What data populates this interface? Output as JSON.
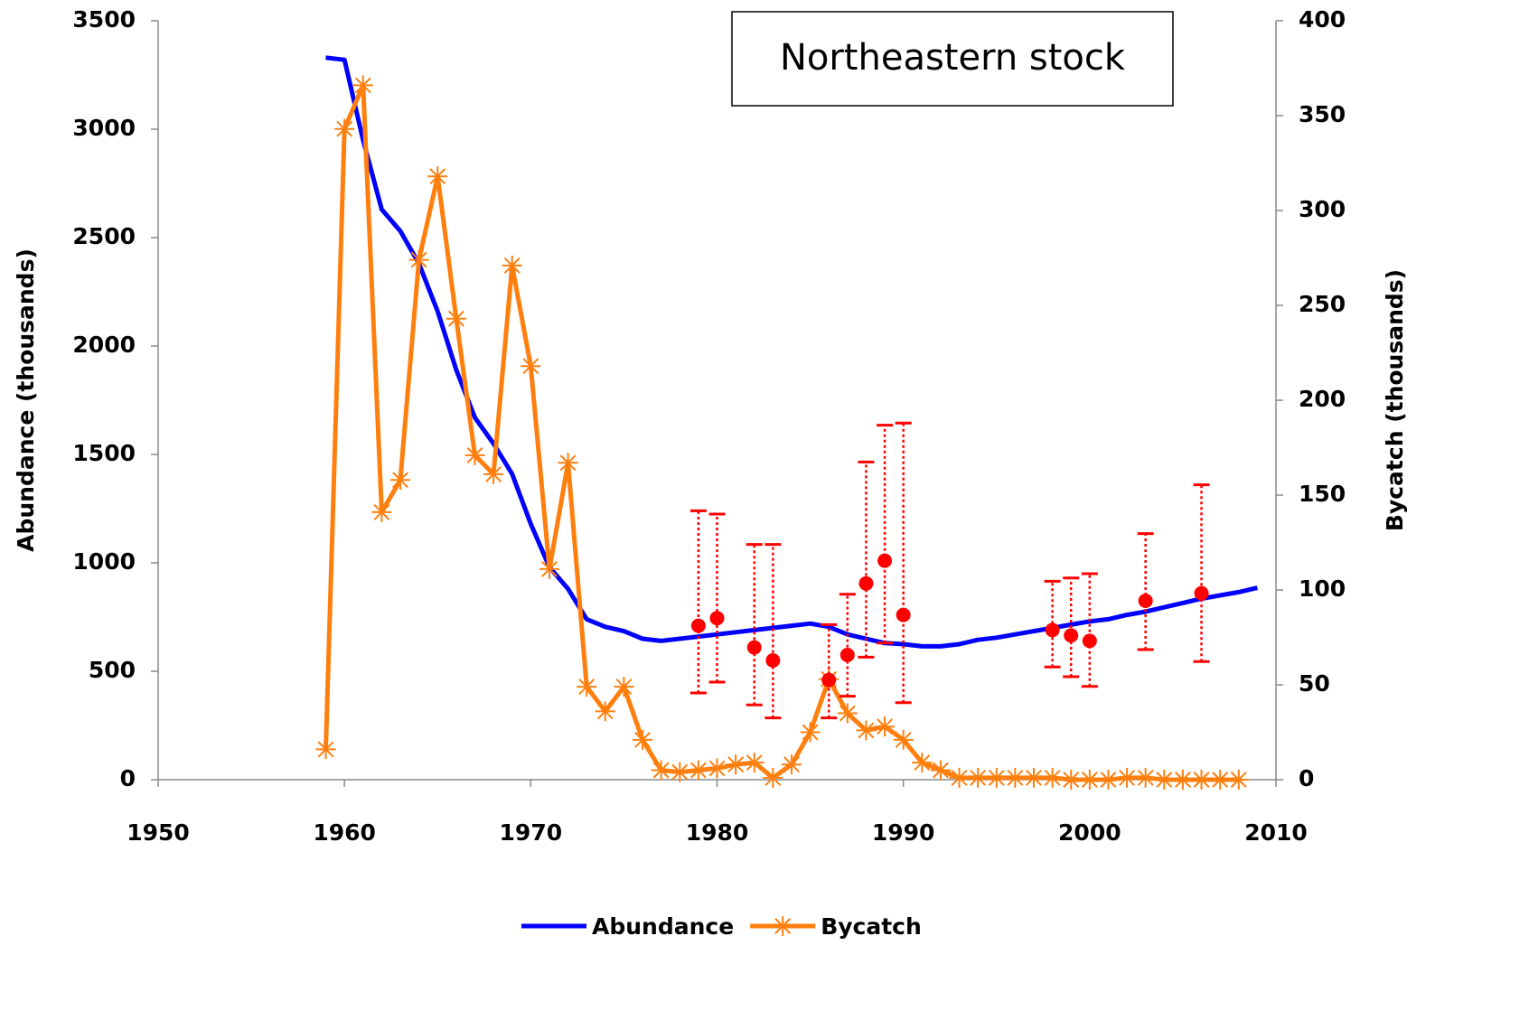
{
  "chart_data": {
    "type": "line",
    "annotation": "Northeastern stock",
    "y_label": "Abundance (thousands)",
    "y2_label": "Bycatch (thousands)",
    "xlim": [
      1950,
      2010
    ],
    "xticks": [
      1950,
      1960,
      1970,
      1980,
      1990,
      2000,
      2010
    ],
    "ylim": [
      0,
      3500
    ],
    "yticks": [
      0,
      500,
      1000,
      1500,
      2000,
      2500,
      3000,
      3500
    ],
    "y2lim": [
      0,
      400
    ],
    "y2ticks": [
      0,
      50,
      100,
      150,
      200,
      250,
      300,
      350,
      400
    ],
    "series": [
      {
        "name": "Abundance",
        "color": "#0000ff",
        "x": [
          1959,
          1960,
          1961,
          1962,
          1963,
          1964,
          1965,
          1966,
          1967,
          1968,
          1969,
          1970,
          1971,
          1972,
          1973,
          1974,
          1975,
          1976,
          1977,
          1978,
          1979,
          1980,
          1981,
          1982,
          1983,
          1984,
          1985,
          1986,
          1987,
          1988,
          1989,
          1990,
          1991,
          1992,
          1993,
          1994,
          1995,
          1996,
          1997,
          1998,
          1999,
          2000,
          2001,
          2002,
          2003,
          2004,
          2005,
          2006,
          2007,
          2008,
          2009
        ],
        "values": [
          3330,
          3320,
          2950,
          2630,
          2530,
          2380,
          2160,
          1890,
          1670,
          1550,
          1410,
          1180,
          980,
          880,
          740,
          705,
          685,
          650,
          640,
          650,
          660,
          670,
          680,
          690,
          700,
          710,
          720,
          705,
          670,
          650,
          630,
          625,
          615,
          615,
          625,
          645,
          655,
          670,
          685,
          700,
          715,
          730,
          740,
          760,
          775,
          795,
          815,
          835,
          850,
          865,
          885
        ]
      },
      {
        "name": "Bycatch",
        "color": "#ff7f0e",
        "axis": "y2",
        "x": [
          1959,
          1960,
          1961,
          1962,
          1963,
          1964,
          1965,
          1966,
          1967,
          1968,
          1969,
          1970,
          1971,
          1972,
          1973,
          1974,
          1975,
          1976,
          1977,
          1978,
          1979,
          1980,
          1981,
          1982,
          1983,
          1984,
          1985,
          1986,
          1987,
          1988,
          1989,
          1990,
          1991,
          1992,
          1993,
          1994,
          1995,
          1996,
          1997,
          1998,
          1999,
          2000,
          2001,
          2002,
          2003,
          2004,
          2005,
          2006,
          2007,
          2008
        ],
        "values": [
          16,
          343,
          366,
          141,
          158,
          274,
          318,
          243,
          171,
          161,
          271,
          218,
          111,
          167,
          49,
          36,
          49,
          21,
          5,
          4,
          5,
          6,
          8,
          9,
          1,
          8,
          25,
          53,
          35,
          26,
          28,
          21,
          9,
          5,
          1,
          1,
          1,
          1,
          1,
          1,
          0,
          0,
          0,
          1,
          1,
          0,
          0,
          0,
          0,
          0
        ]
      },
      {
        "color": "#ff0000",
        "type": "errorbar",
        "x": [
          1979,
          1980,
          1982,
          1983,
          1986,
          1987,
          1988,
          1989,
          1990,
          1998,
          1999,
          2000,
          2003,
          2006
        ],
        "values": [
          710,
          745,
          610,
          550,
          460,
          575,
          905,
          1010,
          760,
          690,
          665,
          640,
          825,
          860
        ],
        "lower": [
          400,
          450,
          345,
          285,
          285,
          385,
          565,
          630,
          355,
          520,
          475,
          430,
          600,
          545
        ],
        "upper": [
          1240,
          1225,
          1085,
          1085,
          715,
          855,
          1465,
          1635,
          1645,
          915,
          930,
          950,
          1135,
          1360
        ]
      }
    ]
  }
}
